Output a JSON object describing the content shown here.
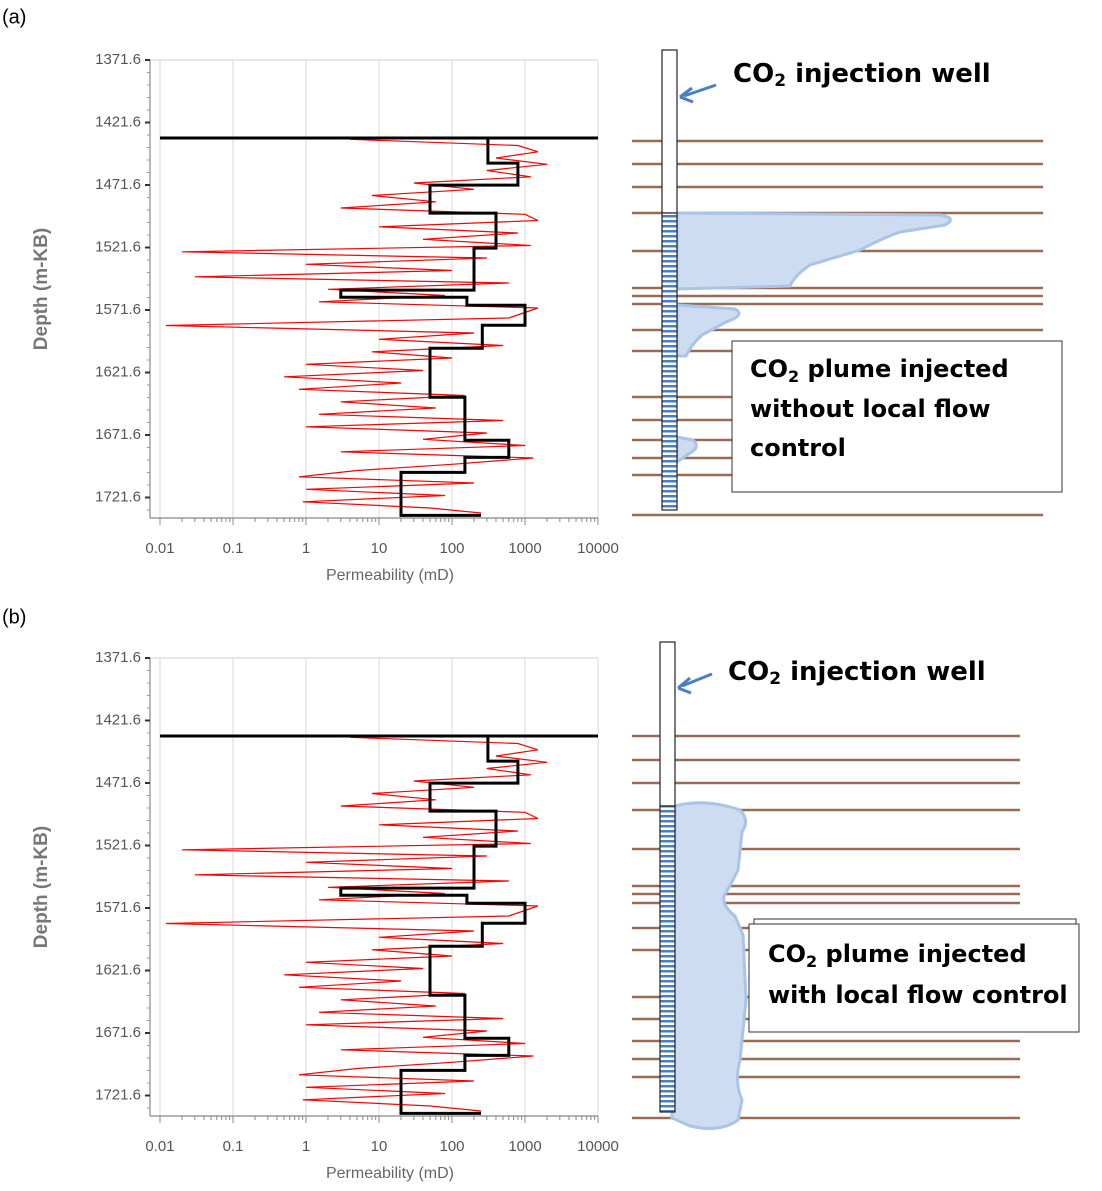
{
  "chart_data": [
    {
      "type": "line",
      "xlabel": "Permeability (mD)",
      "ylabel": "Depth (m-KB)",
      "xscale": "log",
      "y_inverted": true,
      "grid": "x",
      "xlim": [
        0.01,
        10000
      ],
      "xticks": [
        0.01,
        0.1,
        1,
        10,
        100,
        1000,
        10000
      ],
      "ylim": [
        1371.6,
        1738
      ],
      "yticks": [
        1371.6,
        1421.6,
        1471.6,
        1521.6,
        1571.6,
        1621.6,
        1671.6,
        1721.6
      ],
      "series": [
        {
          "color": "#ff0000",
          "x": [
            4,
            800,
            1500,
            400,
            2000,
            300,
            1200,
            30,
            200,
            8,
            60,
            3,
            1000,
            1500,
            10,
            800,
            40,
            1200,
            0.02,
            300,
            1,
            100,
            0.03,
            600,
            2,
            80,
            1.5,
            1500,
            600,
            0.012,
            200,
            10,
            500,
            8,
            100,
            1,
            40,
            0.5,
            20,
            0.8,
            150,
            3,
            60,
            1.5,
            500,
            1,
            300,
            40,
            1000,
            3,
            1300,
            100,
            5,
            0.8,
            200,
            1,
            80,
            0.9,
            50,
            250
          ],
          "y": [
            1435,
            1440,
            1445,
            1450,
            1455,
            1460,
            1465,
            1470,
            1475,
            1480,
            1485,
            1490,
            1495,
            1500,
            1505,
            1510,
            1515,
            1520,
            1525,
            1530,
            1535,
            1540,
            1545,
            1550,
            1555,
            1560,
            1565,
            1570,
            1578,
            1584,
            1590,
            1595,
            1600,
            1605,
            1610,
            1615,
            1620,
            1625,
            1630,
            1635,
            1640,
            1645,
            1650,
            1655,
            1660,
            1665,
            1670,
            1675,
            1680,
            1685,
            1690,
            1695,
            1700,
            1705,
            1710,
            1715,
            1720,
            1725,
            1730,
            1734
          ]
        },
        {
          "color": "#000000",
          "x": [
            310,
            310,
            800,
            800,
            50,
            50,
            400,
            400,
            200,
            200,
            3,
            3,
            160,
            160,
            1000,
            1000,
            260,
            260,
            50,
            50,
            150,
            150,
            600,
            600,
            150,
            150,
            20,
            20,
            250
          ],
          "y": [
            1434,
            1454.1,
            1454.1,
            1471.7,
            1471.7,
            1494.1,
            1494.1,
            1522.1,
            1522.1,
            1555.7,
            1555.7,
            1561.4,
            1561.4,
            1567.8,
            1567.8,
            1583.8,
            1583.8,
            1602.2,
            1602.2,
            1641.4,
            1641.4,
            1675.8,
            1675.8,
            1689.5,
            1689.5,
            1701.5,
            1701.5,
            1735.9,
            1735.9
          ]
        },
        {
          "color": "#000000",
          "x": [
            0.01,
            10000
          ],
          "y": [
            1434,
            1434
          ]
        }
      ]
    },
    {
      "type": "line",
      "xlabel": "Permeability (mD)",
      "ylabel": "Depth (m-KB)",
      "xscale": "log",
      "y_inverted": true,
      "grid": "x",
      "xlim": [
        0.01,
        10000
      ],
      "xticks": [
        0.01,
        0.1,
        1,
        10,
        100,
        1000,
        10000
      ],
      "ylim": [
        1371.6,
        1738
      ],
      "yticks": [
        1371.6,
        1421.6,
        1471.6,
        1521.6,
        1571.6,
        1621.6,
        1671.6,
        1721.6
      ],
      "series": [
        {
          "color": "#ff0000",
          "x": [
            4,
            800,
            1500,
            400,
            2000,
            300,
            1200,
            30,
            200,
            8,
            60,
            3,
            1000,
            1500,
            10,
            800,
            40,
            1200,
            0.02,
            300,
            1,
            100,
            0.03,
            600,
            2,
            80,
            1.5,
            1500,
            600,
            0.012,
            200,
            10,
            500,
            8,
            100,
            1,
            40,
            0.5,
            20,
            0.8,
            150,
            3,
            60,
            1.5,
            500,
            1,
            300,
            40,
            1000,
            3,
            1300,
            100,
            5,
            0.8,
            200,
            1,
            80,
            0.9,
            50,
            250
          ],
          "y": [
            1435,
            1440,
            1445,
            1450,
            1455,
            1460,
            1465,
            1470,
            1475,
            1480,
            1485,
            1490,
            1495,
            1500,
            1505,
            1510,
            1515,
            1520,
            1525,
            1530,
            1535,
            1540,
            1545,
            1550,
            1555,
            1560,
            1565,
            1570,
            1578,
            1584,
            1590,
            1595,
            1600,
            1605,
            1610,
            1615,
            1620,
            1625,
            1630,
            1635,
            1640,
            1645,
            1650,
            1655,
            1660,
            1665,
            1670,
            1675,
            1680,
            1685,
            1690,
            1695,
            1700,
            1705,
            1710,
            1715,
            1720,
            1725,
            1730,
            1734
          ]
        },
        {
          "color": "#000000",
          "x": [
            310,
            310,
            800,
            800,
            50,
            50,
            400,
            400,
            200,
            200,
            3,
            3,
            160,
            160,
            1000,
            1000,
            260,
            260,
            50,
            50,
            150,
            150,
            600,
            600,
            150,
            150,
            20,
            20,
            250
          ],
          "y": [
            1434,
            1454.1,
            1454.1,
            1471.7,
            1471.7,
            1494.1,
            1494.1,
            1522.1,
            1522.1,
            1555.7,
            1555.7,
            1561.4,
            1561.4,
            1567.8,
            1567.8,
            1583.8,
            1583.8,
            1602.2,
            1602.2,
            1641.4,
            1641.4,
            1675.8,
            1675.8,
            1689.5,
            1689.5,
            1701.5,
            1701.5,
            1735.9,
            1735.9
          ]
        },
        {
          "color": "#000000",
          "x": [
            0.01,
            10000
          ],
          "y": [
            1434,
            1434
          ]
        }
      ]
    }
  ],
  "panel_labels": [
    "(a)",
    "(b)"
  ],
  "diagrams": [
    {
      "well_label": [
        "CO",
        "2",
        " injection  well"
      ],
      "plume_label": [
        [
          "CO",
          "2",
          " plume injected"
        ],
        [
          "without local flow"
        ],
        [
          "control"
        ]
      ]
    },
    {
      "well_label": [
        "CO",
        "2",
        " injection well"
      ],
      "plume_label": [
        [
          "CO",
          "2",
          " plume injected"
        ],
        [
          "with local flow control"
        ]
      ]
    }
  ]
}
